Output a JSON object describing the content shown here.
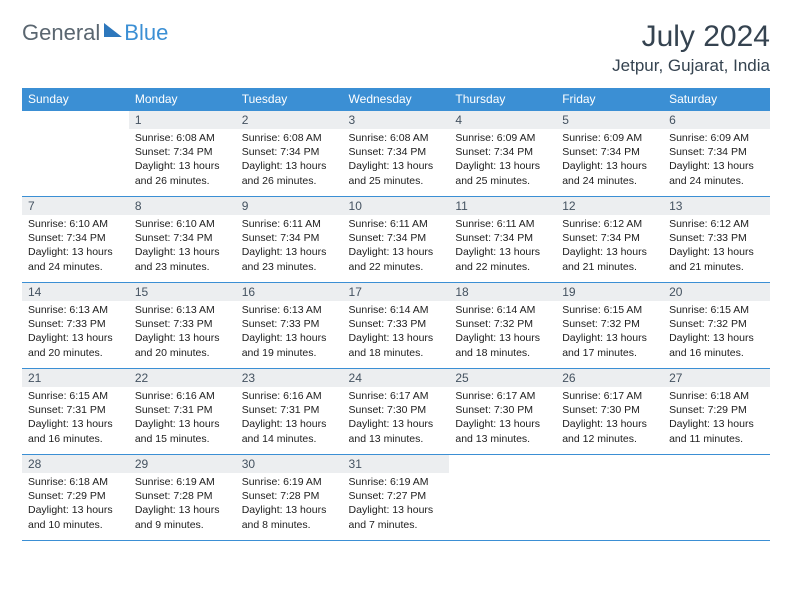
{
  "brand": {
    "part1": "General",
    "part2": "Blue"
  },
  "title": "July 2024",
  "subtitle": "Jetpur, Gujarat, India",
  "colors": {
    "header_bg": "#3b8fd4",
    "header_text": "#ffffff",
    "daynum_bg": "#eceef0",
    "daynum_text": "#445260",
    "border": "#3b8fd4",
    "body_text": "#202020",
    "title_text": "#354350"
  },
  "typography": {
    "title_fontsize": 30,
    "subtitle_fontsize": 17,
    "header_fontsize": 12,
    "daynum_fontsize": 12,
    "daytext_fontsize": 10.5
  },
  "day_headers": [
    "Sunday",
    "Monday",
    "Tuesday",
    "Wednesday",
    "Thursday",
    "Friday",
    "Saturday"
  ],
  "weeks": [
    [
      null,
      {
        "n": "1",
        "sr": "6:08 AM",
        "ss": "7:34 PM",
        "dl": "13 hours and 26 minutes."
      },
      {
        "n": "2",
        "sr": "6:08 AM",
        "ss": "7:34 PM",
        "dl": "13 hours and 26 minutes."
      },
      {
        "n": "3",
        "sr": "6:08 AM",
        "ss": "7:34 PM",
        "dl": "13 hours and 25 minutes."
      },
      {
        "n": "4",
        "sr": "6:09 AM",
        "ss": "7:34 PM",
        "dl": "13 hours and 25 minutes."
      },
      {
        "n": "5",
        "sr": "6:09 AM",
        "ss": "7:34 PM",
        "dl": "13 hours and 24 minutes."
      },
      {
        "n": "6",
        "sr": "6:09 AM",
        "ss": "7:34 PM",
        "dl": "13 hours and 24 minutes."
      }
    ],
    [
      {
        "n": "7",
        "sr": "6:10 AM",
        "ss": "7:34 PM",
        "dl": "13 hours and 24 minutes."
      },
      {
        "n": "8",
        "sr": "6:10 AM",
        "ss": "7:34 PM",
        "dl": "13 hours and 23 minutes."
      },
      {
        "n": "9",
        "sr": "6:11 AM",
        "ss": "7:34 PM",
        "dl": "13 hours and 23 minutes."
      },
      {
        "n": "10",
        "sr": "6:11 AM",
        "ss": "7:34 PM",
        "dl": "13 hours and 22 minutes."
      },
      {
        "n": "11",
        "sr": "6:11 AM",
        "ss": "7:34 PM",
        "dl": "13 hours and 22 minutes."
      },
      {
        "n": "12",
        "sr": "6:12 AM",
        "ss": "7:34 PM",
        "dl": "13 hours and 21 minutes."
      },
      {
        "n": "13",
        "sr": "6:12 AM",
        "ss": "7:33 PM",
        "dl": "13 hours and 21 minutes."
      }
    ],
    [
      {
        "n": "14",
        "sr": "6:13 AM",
        "ss": "7:33 PM",
        "dl": "13 hours and 20 minutes."
      },
      {
        "n": "15",
        "sr": "6:13 AM",
        "ss": "7:33 PM",
        "dl": "13 hours and 20 minutes."
      },
      {
        "n": "16",
        "sr": "6:13 AM",
        "ss": "7:33 PM",
        "dl": "13 hours and 19 minutes."
      },
      {
        "n": "17",
        "sr": "6:14 AM",
        "ss": "7:33 PM",
        "dl": "13 hours and 18 minutes."
      },
      {
        "n": "18",
        "sr": "6:14 AM",
        "ss": "7:32 PM",
        "dl": "13 hours and 18 minutes."
      },
      {
        "n": "19",
        "sr": "6:15 AM",
        "ss": "7:32 PM",
        "dl": "13 hours and 17 minutes."
      },
      {
        "n": "20",
        "sr": "6:15 AM",
        "ss": "7:32 PM",
        "dl": "13 hours and 16 minutes."
      }
    ],
    [
      {
        "n": "21",
        "sr": "6:15 AM",
        "ss": "7:31 PM",
        "dl": "13 hours and 16 minutes."
      },
      {
        "n": "22",
        "sr": "6:16 AM",
        "ss": "7:31 PM",
        "dl": "13 hours and 15 minutes."
      },
      {
        "n": "23",
        "sr": "6:16 AM",
        "ss": "7:31 PM",
        "dl": "13 hours and 14 minutes."
      },
      {
        "n": "24",
        "sr": "6:17 AM",
        "ss": "7:30 PM",
        "dl": "13 hours and 13 minutes."
      },
      {
        "n": "25",
        "sr": "6:17 AM",
        "ss": "7:30 PM",
        "dl": "13 hours and 13 minutes."
      },
      {
        "n": "26",
        "sr": "6:17 AM",
        "ss": "7:30 PM",
        "dl": "13 hours and 12 minutes."
      },
      {
        "n": "27",
        "sr": "6:18 AM",
        "ss": "7:29 PM",
        "dl": "13 hours and 11 minutes."
      }
    ],
    [
      {
        "n": "28",
        "sr": "6:18 AM",
        "ss": "7:29 PM",
        "dl": "13 hours and 10 minutes."
      },
      {
        "n": "29",
        "sr": "6:19 AM",
        "ss": "7:28 PM",
        "dl": "13 hours and 9 minutes."
      },
      {
        "n": "30",
        "sr": "6:19 AM",
        "ss": "7:28 PM",
        "dl": "13 hours and 8 minutes."
      },
      {
        "n": "31",
        "sr": "6:19 AM",
        "ss": "7:27 PM",
        "dl": "13 hours and 7 minutes."
      },
      null,
      null,
      null
    ]
  ],
  "labels": {
    "sunrise": "Sunrise:",
    "sunset": "Sunset:",
    "daylight": "Daylight:"
  }
}
